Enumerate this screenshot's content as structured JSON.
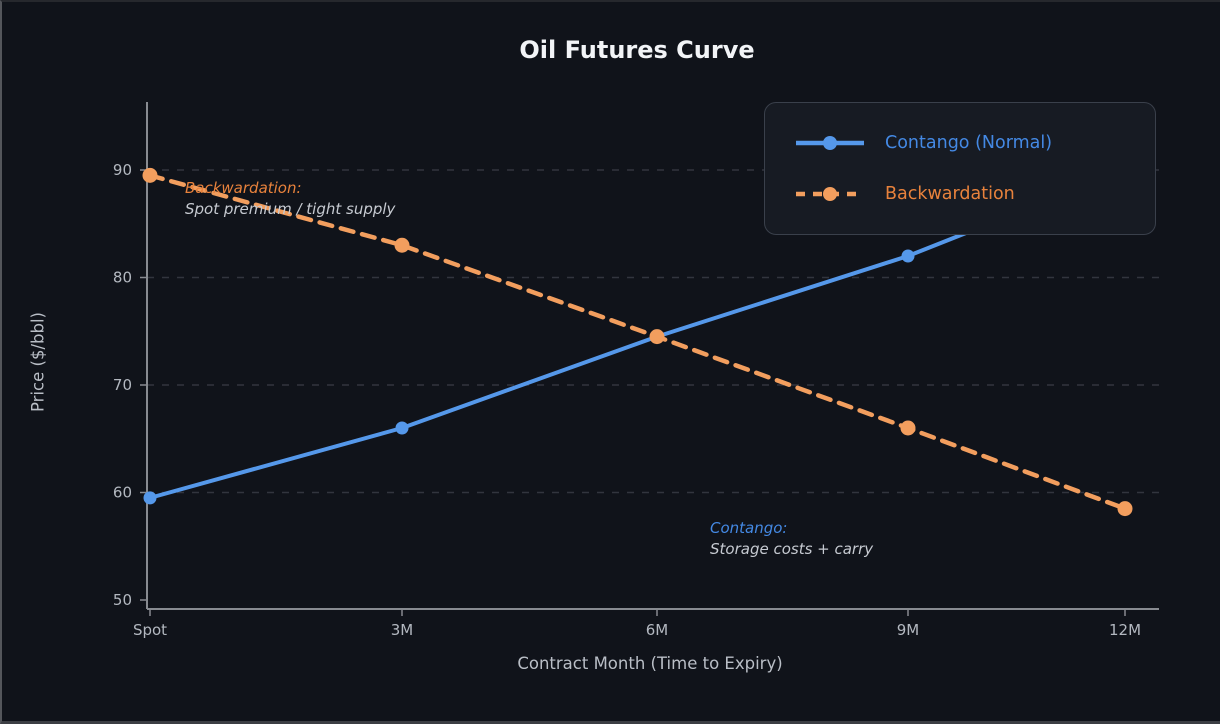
{
  "chart_data": {
    "type": "line",
    "title": "Oil Futures Curve",
    "xlabel": "Contract Month (Time to Expiry)",
    "ylabel": "Price ($/bbl)",
    "categories": [
      "Spot",
      "3M",
      "6M",
      "9M",
      "12M"
    ],
    "y_ticks": [
      50,
      60,
      70,
      80,
      90
    ],
    "ylim": [
      49,
      96.5
    ],
    "grid": "horizontal-dashed",
    "legend": {
      "position": "upper-right"
    },
    "series": [
      {
        "name": "Contango (Normal)",
        "line_style": "solid",
        "marker": "circle",
        "color": "#5598ea",
        "text_color": "#4489e4",
        "values": [
          59.5,
          66.0,
          74.5,
          82.0,
          90.0
        ]
      },
      {
        "name": "Backwardation",
        "line_style": "dashed",
        "marker": "circle",
        "color": "#f29e5e",
        "text_color": "#e8823c",
        "values": [
          89.5,
          83.0,
          74.5,
          66.0,
          58.5
        ]
      }
    ],
    "annotations": [
      {
        "title": "Backwardation:",
        "body": "Spot premium / tight supply",
        "title_color": "#e8823c"
      },
      {
        "title": "Contango:",
        "body": "Storage costs + carry",
        "title_color": "#4489e4"
      }
    ]
  }
}
